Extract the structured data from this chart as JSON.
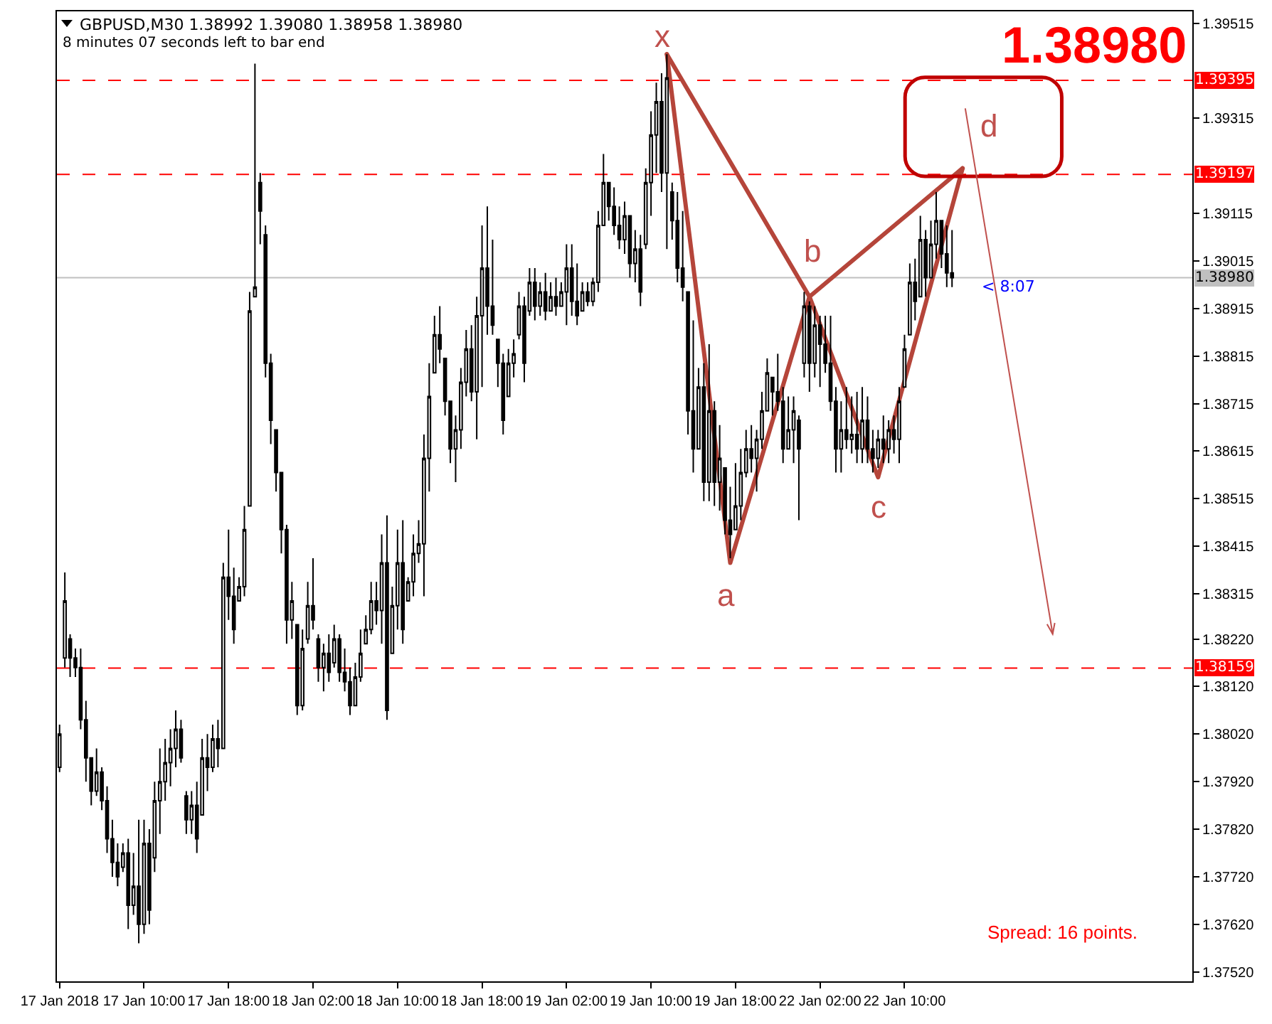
{
  "chart_data": {
    "type": "candlestick",
    "title": "GBPUSD,M30 1.38992 1.39080 1.38958 1.38980",
    "subtitle": "8 minutes 07 seconds left to bar end",
    "categories": [
      "17 Jan 2018",
      null,
      null,
      null,
      null,
      null,
      null,
      null,
      null,
      null,
      null,
      null,
      null,
      null,
      null,
      null,
      "17 Jan 10:00",
      null,
      null,
      null,
      null,
      null,
      null,
      null,
      null,
      null,
      null,
      null,
      null,
      null,
      null,
      null,
      "17 Jan 18:00",
      null,
      null,
      null,
      null,
      null,
      null,
      null,
      null,
      null,
      null,
      null,
      null,
      null,
      null,
      null,
      "18 Jan 02:00",
      null,
      null,
      null,
      null,
      null,
      null,
      null,
      null,
      null,
      null,
      null,
      null,
      null,
      null,
      null,
      "18 Jan 10:00",
      null,
      null,
      null,
      null,
      null,
      null,
      null,
      null,
      null,
      null,
      null,
      null,
      null,
      null,
      null,
      "18 Jan 18:00",
      null,
      null,
      null,
      null,
      null,
      null,
      null,
      null,
      null,
      null,
      null,
      null,
      null,
      null,
      null,
      "19 Jan 02:00",
      null,
      null,
      null,
      null,
      null,
      null,
      null,
      null,
      null,
      null,
      null,
      null,
      null,
      null,
      null,
      "19 Jan 10:00",
      null,
      null,
      null,
      null,
      null,
      null,
      null,
      null,
      null,
      null,
      null,
      null,
      null,
      null,
      null,
      "19 Jan 18:00",
      null,
      null,
      null,
      null,
      null,
      null,
      null,
      null,
      null,
      null,
      null,
      null,
      null,
      null,
      null,
      "22 Jan 02:00",
      null,
      null,
      null,
      null,
      null,
      null,
      null,
      null,
      null,
      null,
      null,
      null,
      null,
      null,
      null,
      "22 Jan 10:00",
      null,
      null,
      null,
      null,
      null,
      null,
      null,
      null,
      null,
      null,
      null,
      null,
      null,
      null,
      null,
      null,
      null,
      null,
      null,
      null,
      null,
      null,
      null,
      null,
      null,
      null,
      null,
      null,
      null,
      null,
      null,
      null,
      null,
      null,
      null,
      null,
      null,
      null,
      null,
      null,
      null,
      null,
      null,
      null,
      null,
      null,
      null,
      null,
      null,
      null,
      null,
      null,
      null,
      null
    ],
    "ohlc": [
      [
        1.3795,
        1.3804,
        1.3794,
        1.3802
      ],
      [
        1.3818,
        1.3836,
        1.3816,
        1.383
      ],
      [
        1.3822,
        1.3823,
        1.3814,
        1.3818
      ],
      [
        1.3818,
        1.382,
        1.3814,
        1.3816
      ],
      [
        1.3816,
        1.382,
        1.3803,
        1.3805
      ],
      [
        1.3805,
        1.3809,
        1.3792,
        1.3797
      ],
      [
        1.3797,
        1.3797,
        1.3787,
        1.379
      ],
      [
        1.379,
        1.3799,
        1.3789,
        1.3794
      ],
      [
        1.3794,
        1.3795,
        1.3786,
        1.3788
      ],
      [
        1.3788,
        1.3791,
        1.3777,
        1.378
      ],
      [
        1.378,
        1.3784,
        1.3772,
        1.3775
      ],
      [
        1.3775,
        1.3779,
        1.377,
        1.3772
      ],
      [
        1.3774,
        1.3779,
        1.3773,
        1.3777
      ],
      [
        1.3777,
        1.378,
        1.3761,
        1.3766
      ],
      [
        1.3766,
        1.3777,
        1.3764,
        1.377
      ],
      [
        1.377,
        1.3784,
        1.3758,
        1.3762
      ],
      [
        1.3762,
        1.3784,
        1.376,
        1.3779
      ],
      [
        1.3779,
        1.3782,
        1.3762,
        1.3765
      ],
      [
        1.3776,
        1.3792,
        1.3773,
        1.3788
      ],
      [
        1.3788,
        1.3799,
        1.3781,
        1.3792
      ],
      [
        1.3792,
        1.3801,
        1.3788,
        1.3796
      ],
      [
        1.3796,
        1.3803,
        1.3791,
        1.3799
      ],
      [
        1.3799,
        1.3807,
        1.3795,
        1.3803
      ],
      [
        1.3803,
        1.3805,
        1.3796,
        1.3797
      ],
      [
        1.3789,
        1.379,
        1.3781,
        1.3784
      ],
      [
        1.3784,
        1.379,
        1.3781,
        1.3787
      ],
      [
        1.3787,
        1.3792,
        1.3777,
        1.378
      ],
      [
        1.3785,
        1.3801,
        1.3785,
        1.3797
      ],
      [
        1.3797,
        1.3802,
        1.379,
        1.3795
      ],
      [
        1.3795,
        1.3804,
        1.3794,
        1.3801
      ],
      [
        1.3801,
        1.3805,
        1.3795,
        1.3799
      ],
      [
        1.3799,
        1.3838,
        1.3799,
        1.3835
      ],
      [
        1.3835,
        1.3845,
        1.3826,
        1.3831
      ],
      [
        1.3831,
        1.3837,
        1.3821,
        1.3824
      ],
      [
        1.383,
        1.3835,
        1.383,
        1.3833
      ],
      [
        1.3833,
        1.385,
        1.3831,
        1.3845
      ],
      [
        1.385,
        1.3895,
        1.385,
        1.3891
      ],
      [
        1.3894,
        1.3943,
        1.3894,
        1.3896
      ],
      [
        1.3918,
        1.392,
        1.3905,
        1.3912
      ],
      [
        1.3907,
        1.3909,
        1.3877,
        1.388
      ],
      [
        1.388,
        1.3882,
        1.3863,
        1.3868
      ],
      [
        1.3866,
        1.3866,
        1.3853,
        1.3857
      ],
      [
        1.3857,
        1.3857,
        1.384,
        1.3845
      ],
      [
        1.3845,
        1.3846,
        1.3821,
        1.3826
      ],
      [
        1.3826,
        1.3834,
        1.3822,
        1.383
      ],
      [
        1.3825,
        1.3825,
        1.3806,
        1.3808
      ],
      [
        1.3808,
        1.3824,
        1.3807,
        1.382
      ],
      [
        1.3822,
        1.3834,
        1.3821,
        1.3829
      ],
      [
        1.3829,
        1.3839,
        1.3824,
        1.3826
      ],
      [
        1.3822,
        1.3823,
        1.3813,
        1.3816
      ],
      [
        1.3816,
        1.3821,
        1.3811,
        1.3819
      ],
      [
        1.3819,
        1.3823,
        1.3813,
        1.3815
      ],
      [
        1.3817,
        1.3825,
        1.3816,
        1.3822
      ],
      [
        1.3822,
        1.3823,
        1.3813,
        1.3815
      ],
      [
        1.3815,
        1.382,
        1.3811,
        1.3813
      ],
      [
        1.3813,
        1.3816,
        1.3806,
        1.3808
      ],
      [
        1.3808,
        1.3817,
        1.3808,
        1.3814
      ],
      [
        1.3814,
        1.3824,
        1.3813,
        1.3819
      ],
      [
        1.3821,
        1.3827,
        1.3821,
        1.3824
      ],
      [
        1.3824,
        1.3834,
        1.3823,
        1.383
      ],
      [
        1.383,
        1.3834,
        1.3825,
        1.3828
      ],
      [
        1.3828,
        1.3844,
        1.3821,
        1.3838
      ],
      [
        1.3838,
        1.3848,
        1.3805,
        1.3807
      ],
      [
        1.3819,
        1.3833,
        1.3819,
        1.3829
      ],
      [
        1.3829,
        1.3845,
        1.3824,
        1.3838
      ],
      [
        1.3838,
        1.3847,
        1.3821,
        1.3824
      ],
      [
        1.383,
        1.3835,
        1.383,
        1.3834
      ],
      [
        1.3834,
        1.3844,
        1.3831,
        1.384
      ],
      [
        1.384,
        1.3847,
        1.3838,
        1.3842
      ],
      [
        1.3842,
        1.3865,
        1.3831,
        1.386
      ],
      [
        1.386,
        1.388,
        1.3853,
        1.3873
      ],
      [
        1.3878,
        1.389,
        1.3878,
        1.3886
      ],
      [
        1.3886,
        1.3892,
        1.388,
        1.3883
      ],
      [
        1.3881,
        1.3881,
        1.3869,
        1.3872
      ],
      [
        1.3872,
        1.3872,
        1.3859,
        1.3862
      ],
      [
        1.3862,
        1.3869,
        1.3855,
        1.3866
      ],
      [
        1.3866,
        1.3879,
        1.3862,
        1.3876
      ],
      [
        1.3876,
        1.3887,
        1.3873,
        1.3883
      ],
      [
        1.3883,
        1.3888,
        1.3872,
        1.3874
      ],
      [
        1.3874,
        1.3894,
        1.3864,
        1.389
      ],
      [
        1.389,
        1.3909,
        1.3875,
        1.39
      ],
      [
        1.39,
        1.3913,
        1.3886,
        1.3892
      ],
      [
        1.3892,
        1.3906,
        1.3886,
        1.3888
      ],
      [
        1.3885,
        1.3885,
        1.3875,
        1.388
      ],
      [
        1.388,
        1.3882,
        1.3865,
        1.3868
      ],
      [
        1.3873,
        1.3883,
        1.3873,
        1.388
      ],
      [
        1.388,
        1.3885,
        1.3877,
        1.3882
      ],
      [
        1.3886,
        1.3895,
        1.3885,
        1.3892
      ],
      [
        1.3892,
        1.3894,
        1.3876,
        1.388
      ],
      [
        1.3891,
        1.39,
        1.389,
        1.3897
      ],
      [
        1.3897,
        1.39,
        1.3889,
        1.3892
      ],
      [
        1.3892,
        1.3897,
        1.389,
        1.3895
      ],
      [
        1.3895,
        1.3899,
        1.3889,
        1.3891
      ],
      [
        1.3891,
        1.3897,
        1.3891,
        1.3894
      ],
      [
        1.3894,
        1.3898,
        1.389,
        1.3892
      ],
      [
        1.3892,
        1.3897,
        1.3892,
        1.3895
      ],
      [
        1.3895,
        1.3905,
        1.3888,
        1.39
      ],
      [
        1.39,
        1.3905,
        1.389,
        1.3893
      ],
      [
        1.3893,
        1.3901,
        1.3888,
        1.389
      ],
      [
        1.3891,
        1.3897,
        1.3891,
        1.3895
      ],
      [
        1.3895,
        1.3897,
        1.3892,
        1.3893
      ],
      [
        1.3893,
        1.3898,
        1.3892,
        1.3897
      ],
      [
        1.3897,
        1.3912,
        1.3895,
        1.3909
      ],
      [
        1.3909,
        1.3924,
        1.3909,
        1.3918
      ],
      [
        1.3918,
        1.3918,
        1.391,
        1.3913
      ],
      [
        1.3913,
        1.3917,
        1.3907,
        1.3909
      ],
      [
        1.3909,
        1.3913,
        1.3904,
        1.3906
      ],
      [
        1.3906,
        1.3914,
        1.3903,
        1.3911
      ],
      [
        1.3911,
        1.3911,
        1.3898,
        1.3901
      ],
      [
        1.3901,
        1.3908,
        1.3897,
        1.3904
      ],
      [
        1.3904,
        1.3907,
        1.3892,
        1.3895
      ],
      [
        1.3905,
        1.3921,
        1.3904,
        1.3918
      ],
      [
        1.3918,
        1.3933,
        1.3911,
        1.3928
      ],
      [
        1.3928,
        1.3939,
        1.392,
        1.3935
      ],
      [
        1.3935,
        1.3941,
        1.3916,
        1.392
      ],
      [
        1.392,
        1.3945,
        1.3904,
        1.394
      ],
      [
        1.3916,
        1.3918,
        1.3906,
        1.391
      ],
      [
        1.391,
        1.3916,
        1.3897,
        1.39
      ],
      [
        1.39,
        1.3912,
        1.3893,
        1.3896
      ],
      [
        1.3895,
        1.3895,
        1.3865,
        1.387
      ],
      [
        1.387,
        1.3889,
        1.3857,
        1.3862
      ],
      [
        1.3862,
        1.3879,
        1.3862,
        1.3875
      ],
      [
        1.3875,
        1.388,
        1.3851,
        1.3855
      ],
      [
        1.3855,
        1.3884,
        1.3851,
        1.387
      ],
      [
        1.387,
        1.3872,
        1.385,
        1.3855
      ],
      [
        1.3855,
        1.3867,
        1.3849,
        1.386
      ],
      [
        1.3858,
        1.3858,
        1.3844,
        1.3847
      ],
      [
        1.3847,
        1.3854,
        1.3839,
        1.3844
      ],
      [
        1.3845,
        1.3859,
        1.3845,
        1.385
      ],
      [
        1.385,
        1.3862,
        1.3847,
        1.3857
      ],
      [
        1.3857,
        1.3866,
        1.3856,
        1.3862
      ],
      [
        1.3862,
        1.3867,
        1.3857,
        1.386
      ],
      [
        1.386,
        1.3866,
        1.3853,
        1.3864
      ],
      [
        1.3864,
        1.3874,
        1.3862,
        1.387
      ],
      [
        1.387,
        1.3881,
        1.387,
        1.3878
      ],
      [
        1.3877,
        1.3877,
        1.3869,
        1.3874
      ],
      [
        1.3874,
        1.3882,
        1.387,
        1.3872
      ],
      [
        1.3872,
        1.3875,
        1.3859,
        1.3862
      ],
      [
        1.3862,
        1.3873,
        1.3862,
        1.3866
      ],
      [
        1.3866,
        1.3873,
        1.3859,
        1.387
      ],
      [
        1.3868,
        1.3869,
        1.3847,
        1.3862
      ],
      [
        1.388,
        1.3895,
        1.3877,
        1.3892
      ],
      [
        1.3892,
        1.3893,
        1.3874,
        1.388
      ],
      [
        1.388,
        1.3892,
        1.3877,
        1.3888
      ],
      [
        1.3888,
        1.389,
        1.3875,
        1.3884
      ],
      [
        1.3884,
        1.389,
        1.3878,
        1.388
      ],
      [
        1.388,
        1.389,
        1.387,
        1.3872
      ],
      [
        1.3872,
        1.3875,
        1.3857,
        1.3862
      ],
      [
        1.3862,
        1.3872,
        1.3857,
        1.3866
      ],
      [
        1.3866,
        1.3875,
        1.3862,
        1.3864
      ],
      [
        1.3864,
        1.3873,
        1.3861,
        1.3865
      ],
      [
        1.3865,
        1.3874,
        1.3859,
        1.3862
      ],
      [
        1.3862,
        1.3875,
        1.3859,
        1.3868
      ],
      [
        1.3868,
        1.3873,
        1.3859,
        1.3862
      ],
      [
        1.3862,
        1.3866,
        1.3857,
        1.386
      ],
      [
        1.386,
        1.3866,
        1.3858,
        1.3864
      ],
      [
        1.3864,
        1.3869,
        1.3859,
        1.3862
      ],
      [
        1.3862,
        1.3868,
        1.3859,
        1.3866
      ],
      [
        1.3866,
        1.3869,
        1.3861,
        1.3864
      ],
      [
        1.3864,
        1.3875,
        1.3859,
        1.3872
      ],
      [
        1.3875,
        1.3886,
        1.3875,
        1.3883
      ],
      [
        1.3886,
        1.3901,
        1.3886,
        1.3897
      ],
      [
        1.3897,
        1.3902,
        1.3889,
        1.3893
      ],
      [
        1.3894,
        1.3911,
        1.3894,
        1.3906
      ],
      [
        1.3906,
        1.3908,
        1.3894,
        1.3898
      ],
      [
        1.3898,
        1.391,
        1.3898,
        1.3905
      ],
      [
        1.3905,
        1.3916,
        1.3902,
        1.391
      ],
      [
        1.391,
        1.391,
        1.39,
        1.3903
      ],
      [
        1.3903,
        1.3909,
        1.3896,
        1.3899
      ],
      [
        1.3899,
        1.3908,
        1.3896,
        1.3898
      ],
      null,
      null,
      null,
      null,
      null,
      null,
      null,
      null,
      null,
      null,
      null,
      null,
      null,
      null,
      null,
      null,
      null,
      null,
      null,
      null,
      null,
      null,
      null,
      null,
      null,
      null,
      null,
      null,
      null,
      null,
      null,
      null,
      null,
      null,
      null,
      null,
      null,
      null,
      null,
      null,
      null,
      null,
      null,
      null,
      null
    ],
    "color": "#000000",
    "series": [
      {
        "type": "line",
        "color": "#b5453a",
        "values": [
          null,
          null,
          null,
          null,
          null,
          null,
          null,
          null,
          null,
          null,
          null,
          null,
          null,
          null,
          null,
          null,
          null,
          null,
          null,
          null,
          null,
          null,
          null,
          null,
          null,
          null,
          null,
          null,
          null,
          null,
          null,
          null,
          null,
          null,
          null,
          null,
          null,
          null,
          null,
          null,
          null,
          null,
          null,
          null,
          null,
          null,
          null,
          null,
          null,
          null,
          null,
          null,
          null,
          null,
          null,
          null,
          null,
          null,
          null,
          null,
          null,
          null,
          null,
          null,
          null,
          null,
          null,
          null,
          null,
          null,
          null,
          null,
          null,
          null,
          null,
          null,
          null,
          null,
          null,
          null,
          null,
          null,
          null,
          null,
          null,
          null,
          null,
          null,
          null,
          null,
          null,
          null,
          null,
          null,
          null,
          null,
          null,
          null,
          null,
          null,
          null,
          null,
          null,
          null,
          null,
          null,
          null,
          null,
          null,
          null,
          null,
          null,
          null,
          null,
          null,
          1.3945,
          null,
          null,
          null,
          null,
          null,
          null,
          null,
          null,
          null,
          null,
          null,
          1.3838,
          null,
          null,
          null,
          null,
          null,
          null,
          null,
          null,
          null,
          null,
          null,
          null,
          null,
          null,
          1.3894,
          null,
          null,
          null,
          null,
          null,
          null,
          null,
          null,
          null,
          null,
          null,
          null,
          1.3856,
          null,
          null,
          null,
          null,
          null,
          null,
          null,
          null,
          null,
          null,
          null,
          null,
          null,
          null,
          null,
          1.3921,
          null,
          null,
          null,
          null,
          null,
          null,
          null,
          null,
          null,
          null,
          null,
          null,
          null,
          null,
          null,
          null,
          null,
          null,
          null,
          null,
          null,
          null,
          null,
          null,
          null,
          null,
          null,
          null,
          null,
          null,
          null,
          null,
          null,
          null,
          null,
          null,
          null,
          null,
          null,
          null,
          null,
          null,
          null
        ]
      },
      {
        "type": "line",
        "color": "#b5453a",
        "values": [
          null,
          null,
          null,
          null,
          null,
          null,
          null,
          null,
          null,
          null,
          null,
          null,
          null,
          null,
          null,
          null,
          null,
          null,
          null,
          null,
          null,
          null,
          null,
          null,
          null,
          null,
          null,
          null,
          null,
          null,
          null,
          null,
          null,
          null,
          null,
          null,
          null,
          null,
          null,
          null,
          null,
          null,
          null,
          null,
          null,
          null,
          null,
          null,
          null,
          null,
          null,
          null,
          null,
          null,
          null,
          null,
          null,
          null,
          null,
          null,
          null,
          null,
          null,
          null,
          null,
          null,
          null,
          null,
          null,
          null,
          null,
          null,
          null,
          null,
          null,
          null,
          null,
          null,
          null,
          null,
          null,
          null,
          null,
          null,
          null,
          null,
          null,
          null,
          null,
          null,
          null,
          null,
          null,
          null,
          null,
          null,
          null,
          null,
          null,
          null,
          null,
          null,
          null,
          null,
          null,
          null,
          null,
          null,
          null,
          null,
          null,
          null,
          null,
          null,
          null,
          1.3945,
          null,
          null,
          null,
          null,
          null,
          null,
          null,
          null,
          null,
          null,
          null,
          null,
          null,
          null,
          null,
          null,
          null,
          null,
          null,
          null,
          null,
          null,
          null,
          null,
          null,
          null,
          1.3894,
          null,
          null,
          null,
          null,
          null,
          null,
          null,
          null,
          null,
          null,
          null,
          null,
          null,
          null,
          null,
          null,
          null,
          null,
          null,
          null,
          null,
          null,
          null,
          null,
          null,
          null,
          null,
          null,
          1.3921,
          null,
          null,
          null,
          null,
          null,
          null,
          null,
          null,
          null,
          null,
          null,
          null,
          null,
          null,
          null,
          null,
          null,
          null,
          null,
          null,
          null,
          null,
          null,
          null,
          null,
          null,
          null,
          null,
          null,
          null,
          null,
          null,
          null,
          null,
          null,
          null,
          null,
          null,
          null,
          null,
          null,
          null,
          null
        ]
      }
    ],
    "ylim": [
      1.375,
      1.3954
    ],
    "yticks": [
      {
        "value": 1.3752,
        "label": "1.37520"
      },
      {
        "value": 1.3762,
        "label": "1.37620"
      },
      {
        "value": 1.3772,
        "label": "1.37720"
      },
      {
        "value": 1.3782,
        "label": "1.37820"
      },
      {
        "value": 1.3792,
        "label": "1.37920"
      },
      {
        "value": 1.3802,
        "label": "1.38020"
      },
      {
        "value": 1.3812,
        "label": "1.38120"
      },
      {
        "value": 1.3822,
        "label": "1.38220"
      },
      1.38315,
      1.38415,
      1.38515,
      1.38615,
      1.38715,
      1.38815,
      1.38915,
      1.39015,
      1.39115,
      1.39315,
      1.39515
    ],
    "ref_lines": [
      {
        "axis": "y",
        "value": 1.39395,
        "label": "1.39395",
        "color": "#ff0000",
        "line_style": "dashed"
      },
      {
        "axis": "y",
        "value": 1.39197,
        "label": "1.39197",
        "color": "#ff0000",
        "line_style": "dashed"
      },
      {
        "axis": "y",
        "value": 1.38159,
        "label": "1.38159",
        "color": "#ff0000",
        "line_style": "dashed"
      },
      {
        "axis": "y",
        "value": 1.3898,
        "label": "1.38980",
        "color": "#c0c0c0",
        "line_style": "solid"
      }
    ],
    "annotations": [
      "1.38980",
      "Spread: 16 points.",
      "x",
      "a",
      "b",
      "c",
      "d",
      "< 8:07"
    ],
    "grid": false
  }
}
